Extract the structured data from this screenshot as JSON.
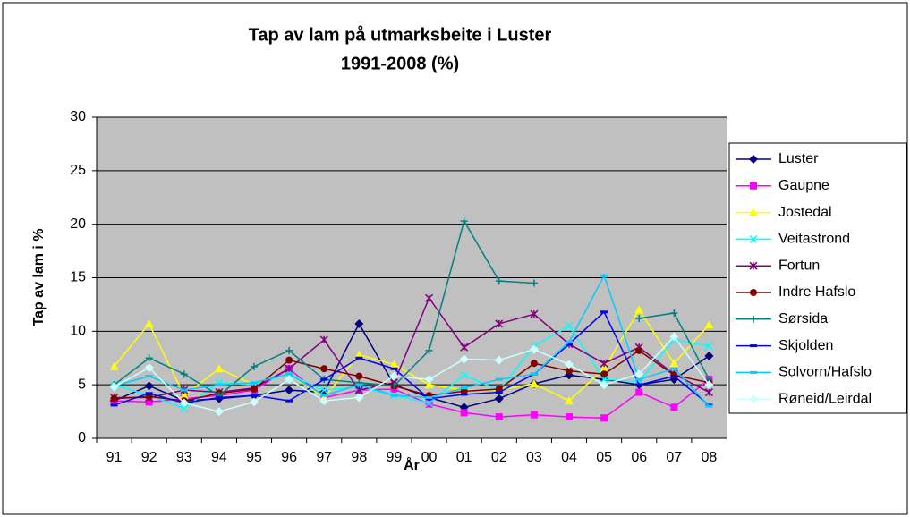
{
  "chart_data": {
    "type": "line",
    "title": "Tap av lam på utmarksbeite i Luster",
    "subtitle": "1991-2008 (%)",
    "x_label": "År",
    "y_label": "Tap av lam i %",
    "categories": [
      "91",
      "92",
      "93",
      "94",
      "95",
      "96",
      "97",
      "98",
      "99",
      "00",
      "01",
      "02",
      "03",
      "04",
      "05",
      "06",
      "07",
      "08"
    ],
    "ylim": [
      0,
      30
    ],
    "yticks": [
      0,
      5,
      10,
      15,
      20,
      25,
      30
    ],
    "grid": true,
    "legend": "right",
    "series": [
      {
        "name": "Luster",
        "color": "#000080",
        "marker": "diamond",
        "values": [
          3.5,
          4.9,
          3.5,
          3.7,
          4.0,
          4.5,
          4.3,
          10.7,
          5.0,
          3.8,
          2.9,
          3.7,
          5.1,
          5.9,
          5.5,
          5.0,
          5.5,
          7.7
        ]
      },
      {
        "name": "Gaupne",
        "color": "#ff00ff",
        "marker": "square",
        "values": [
          3.5,
          3.4,
          3.7,
          4.0,
          4.5,
          6.5,
          3.8,
          4.5,
          4.6,
          3.2,
          2.4,
          2.0,
          2.2,
          2.0,
          1.9,
          4.3,
          2.9,
          5.5
        ]
      },
      {
        "name": "Jostedal",
        "color": "#ffff00",
        "marker": "triangle",
        "values": [
          6.7,
          10.7,
          4.0,
          6.5,
          5.0,
          6.0,
          3.8,
          7.8,
          6.9,
          5.0,
          4.5,
          4.5,
          5.1,
          3.5,
          6.5,
          12.0,
          7.0,
          10.6
        ]
      },
      {
        "name": "Veitastrond",
        "color": "#00ffff",
        "marker": "x",
        "values": [
          5.0,
          4.0,
          2.8,
          5.2,
          5.0,
          6.0,
          4.5,
          4.8,
          4.0,
          3.3,
          5.9,
          4.5,
          8.6,
          10.5,
          5.5,
          5.3,
          9.2,
          8.6
        ]
      },
      {
        "name": "Fortun",
        "color": "#800080",
        "marker": "star",
        "values": [
          3.8,
          3.8,
          4.5,
          4.3,
          4.7,
          6.5,
          9.2,
          4.5,
          5.2,
          13.1,
          8.5,
          10.7,
          11.6,
          8.8,
          7.0,
          8.5,
          6.0,
          4.3
        ]
      },
      {
        "name": "Indre Hafslo",
        "color": "#800000",
        "marker": "circle",
        "values": [
          3.7,
          3.9,
          3.5,
          4.2,
          4.6,
          7.3,
          6.5,
          5.8,
          4.9,
          4.0,
          4.4,
          4.6,
          7.0,
          6.3,
          6.0,
          8.2,
          5.9,
          5.2
        ]
      },
      {
        "name": "Sørsida",
        "color": "#008080",
        "marker": "plus",
        "values": [
          5.0,
          7.5,
          6.0,
          4.0,
          6.7,
          8.2,
          5.5,
          5.2,
          4.9,
          8.2,
          20.3,
          14.7,
          14.5,
          null,
          null,
          11.2,
          11.7,
          5.5
        ]
      },
      {
        "name": "Skjolden",
        "color": "#0000ff",
        "marker": "dash",
        "values": [
          3.1,
          4.2,
          3.3,
          3.8,
          4.0,
          3.5,
          5.5,
          7.5,
          6.5,
          3.7,
          4.1,
          4.3,
          6.0,
          8.8,
          11.8,
          5.0,
          5.8,
          3.1
        ]
      },
      {
        "name": "Solvorn/Hafslo",
        "color": "#00ccff",
        "marker": "dash",
        "values": [
          4.9,
          5.8,
          4.5,
          5.0,
          5.2,
          6.0,
          4.0,
          5.0,
          4.0,
          3.8,
          4.7,
          5.5,
          6.0,
          9.0,
          15.2,
          5.5,
          6.5,
          3.0
        ]
      },
      {
        "name": "Røneid/Leirdal",
        "color": "#ccffff",
        "marker": "diamond",
        "values": [
          4.8,
          6.6,
          3.3,
          2.5,
          3.4,
          5.5,
          3.5,
          3.8,
          5.8,
          5.5,
          7.4,
          7.3,
          8.3,
          6.9,
          5.0,
          6.0,
          9.5,
          5.0
        ]
      }
    ]
  }
}
